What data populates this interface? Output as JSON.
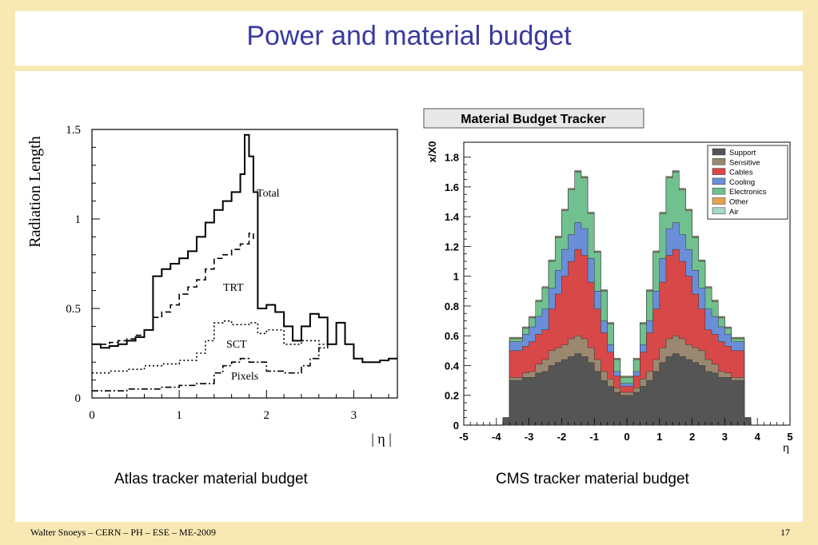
{
  "slide": {
    "title": "Power and material budget",
    "footer": "Walter Snoeys – CERN – PH – ESE – ME-2009",
    "page_number": "17",
    "caption_left": "Atlas tracker material budget",
    "caption_right": "CMS tracker material budget"
  },
  "colors": {
    "title": "#3a3aa0",
    "background": "#f8e8b4",
    "support": "#555555",
    "sensitive": "#9a8870",
    "cables": "#d84848",
    "cooling": "#6a8ed8",
    "electronics": "#70c090",
    "other": "#e8a050",
    "air": "#a8d8c8"
  },
  "chart_data": [
    {
      "type": "line",
      "xlabel": "| η |",
      "ylabel": "Radiation Length",
      "xlim": [
        0,
        3.5
      ],
      "ylim": [
        0,
        1.5
      ],
      "x_ticks": [
        "0",
        "1",
        "2",
        "3"
      ],
      "y_ticks": [
        "0",
        "0.5",
        "1",
        "1.5"
      ],
      "series": [
        {
          "name": "Total",
          "style": "solid",
          "x": [
            0,
            0.1,
            0.2,
            0.3,
            0.4,
            0.5,
            0.6,
            0.7,
            0.8,
            0.9,
            1.0,
            1.1,
            1.2,
            1.3,
            1.4,
            1.5,
            1.6,
            1.7,
            1.75,
            1.8,
            1.85,
            1.9,
            2.0,
            2.1,
            2.2,
            2.3,
            2.4,
            2.5,
            2.6,
            2.7,
            2.8,
            2.9,
            3.0,
            3.1,
            3.2,
            3.3,
            3.4,
            3.5
          ],
          "y": [
            0.3,
            0.28,
            0.29,
            0.3,
            0.32,
            0.34,
            0.38,
            0.68,
            0.72,
            0.75,
            0.78,
            0.82,
            0.9,
            0.98,
            1.05,
            1.1,
            1.15,
            1.25,
            1.47,
            1.35,
            1.15,
            0.5,
            0.52,
            0.48,
            0.4,
            0.32,
            0.4,
            0.47,
            0.45,
            0.3,
            0.42,
            0.3,
            0.22,
            0.2,
            0.2,
            0.21,
            0.22,
            0.22
          ]
        },
        {
          "name": "TRT",
          "style": "dashed",
          "x": [
            0,
            0.1,
            0.2,
            0.3,
            0.4,
            0.5,
            0.6,
            0.7,
            0.8,
            0.9,
            1.0,
            1.1,
            1.2,
            1.3,
            1.4,
            1.5,
            1.6,
            1.7,
            1.8,
            1.85
          ],
          "y": [
            0.3,
            0.3,
            0.31,
            0.32,
            0.33,
            0.35,
            0.38,
            0.45,
            0.48,
            0.52,
            0.58,
            0.62,
            0.66,
            0.72,
            0.78,
            0.8,
            0.83,
            0.86,
            0.92,
            0.88
          ]
        },
        {
          "name": "SCT",
          "style": "dotted",
          "x": [
            0,
            0.2,
            0.4,
            0.6,
            0.8,
            1.0,
            1.2,
            1.3,
            1.4,
            1.5,
            1.6,
            1.7,
            1.8,
            1.9,
            2.0,
            2.2,
            2.4,
            2.6,
            2.7
          ],
          "y": [
            0.14,
            0.15,
            0.16,
            0.18,
            0.19,
            0.21,
            0.25,
            0.32,
            0.42,
            0.43,
            0.41,
            0.41,
            0.42,
            0.36,
            0.38,
            0.3,
            0.32,
            0.3,
            0.3
          ]
        },
        {
          "name": "Pixels",
          "style": "dashdot",
          "x": [
            0,
            0.2,
            0.4,
            0.6,
            0.8,
            1.0,
            1.2,
            1.4,
            1.5,
            1.6,
            1.7,
            1.8,
            2.0,
            2.2,
            2.4,
            2.5,
            2.6,
            2.7
          ],
          "y": [
            0.04,
            0.04,
            0.05,
            0.05,
            0.06,
            0.07,
            0.08,
            0.14,
            0.18,
            0.2,
            0.22,
            0.2,
            0.15,
            0.14,
            0.18,
            0.22,
            0.28,
            0.3
          ]
        }
      ]
    },
    {
      "type": "area",
      "title": "Material Budget Tracker",
      "ylabel": "x/X0",
      "xlabel": "η",
      "xlim": [
        -5,
        5
      ],
      "ylim": [
        0,
        1.9
      ],
      "x_ticks": [
        "-5",
        "-4",
        "-3",
        "-2",
        "-1",
        "0",
        "1",
        "2",
        "3",
        "4",
        "5"
      ],
      "y_ticks": [
        "0",
        "0.2",
        "0.4",
        "0.6",
        "0.8",
        "1",
        "1.2",
        "1.4",
        "1.6",
        "1.8"
      ],
      "legend_position": "top-right",
      "x": [
        -3.7,
        -3.5,
        -3.3,
        -3.1,
        -2.9,
        -2.7,
        -2.5,
        -2.3,
        -2.1,
        -1.9,
        -1.7,
        -1.5,
        -1.3,
        -1.1,
        -0.9,
        -0.7,
        -0.5,
        -0.3,
        -0.1,
        0.1,
        0.3,
        0.5,
        0.7,
        0.9,
        1.1,
        1.3,
        1.5,
        1.7,
        1.9,
        2.1,
        2.3,
        2.5,
        2.7,
        2.9,
        3.1,
        3.3,
        3.5,
        3.7
      ],
      "series": [
        {
          "name": "Support",
          "values": [
            0.05,
            0.3,
            0.3,
            0.32,
            0.32,
            0.35,
            0.36,
            0.4,
            0.42,
            0.44,
            0.46,
            0.48,
            0.46,
            0.42,
            0.36,
            0.3,
            0.26,
            0.22,
            0.2,
            0.2,
            0.22,
            0.26,
            0.3,
            0.36,
            0.42,
            0.46,
            0.48,
            0.46,
            0.44,
            0.42,
            0.4,
            0.36,
            0.35,
            0.32,
            0.32,
            0.3,
            0.3,
            0.05
          ]
        },
        {
          "name": "Sensitive",
          "values": [
            0,
            0.02,
            0.02,
            0.03,
            0.04,
            0.06,
            0.08,
            0.1,
            0.1,
            0.1,
            0.12,
            0.12,
            0.12,
            0.1,
            0.08,
            0.06,
            0.05,
            0.03,
            0.02,
            0.02,
            0.03,
            0.05,
            0.06,
            0.08,
            0.1,
            0.12,
            0.12,
            0.12,
            0.1,
            0.1,
            0.1,
            0.08,
            0.06,
            0.04,
            0.03,
            0.02,
            0.02,
            0
          ]
        },
        {
          "name": "Cables",
          "values": [
            0,
            0.18,
            0.18,
            0.18,
            0.2,
            0.2,
            0.2,
            0.28,
            0.36,
            0.46,
            0.52,
            0.58,
            0.56,
            0.44,
            0.34,
            0.26,
            0.18,
            0.08,
            0.04,
            0.04,
            0.08,
            0.18,
            0.26,
            0.34,
            0.44,
            0.56,
            0.58,
            0.52,
            0.46,
            0.36,
            0.28,
            0.2,
            0.2,
            0.2,
            0.18,
            0.18,
            0.18,
            0
          ]
        },
        {
          "name": "Cooling",
          "values": [
            0,
            0.06,
            0.06,
            0.08,
            0.1,
            0.12,
            0.14,
            0.14,
            0.16,
            0.18,
            0.18,
            0.18,
            0.18,
            0.16,
            0.12,
            0.08,
            0.05,
            0.03,
            0.02,
            0.02,
            0.03,
            0.05,
            0.08,
            0.12,
            0.16,
            0.18,
            0.18,
            0.18,
            0.18,
            0.16,
            0.14,
            0.14,
            0.12,
            0.1,
            0.08,
            0.06,
            0.06,
            0
          ]
        },
        {
          "name": "Electronics",
          "values": [
            0,
            0.02,
            0.02,
            0.04,
            0.06,
            0.1,
            0.14,
            0.18,
            0.22,
            0.26,
            0.3,
            0.34,
            0.34,
            0.3,
            0.26,
            0.2,
            0.14,
            0.08,
            0.04,
            0.04,
            0.08,
            0.14,
            0.2,
            0.26,
            0.3,
            0.34,
            0.34,
            0.3,
            0.26,
            0.22,
            0.18,
            0.14,
            0.1,
            0.06,
            0.04,
            0.02,
            0.02,
            0
          ]
        },
        {
          "name": "Other",
          "values": [
            0,
            0.005,
            0.005,
            0.005,
            0.005,
            0.005,
            0.005,
            0.005,
            0.005,
            0.005,
            0.005,
            0.005,
            0.005,
            0.005,
            0.005,
            0.005,
            0.005,
            0.005,
            0.005,
            0.005,
            0.005,
            0.005,
            0.005,
            0.005,
            0.005,
            0.005,
            0.005,
            0.005,
            0.005,
            0.005,
            0.005,
            0.005,
            0.005,
            0.005,
            0.005,
            0.005,
            0.005,
            0
          ]
        },
        {
          "name": "Air",
          "values": [
            0,
            0.005,
            0.005,
            0.005,
            0.005,
            0.005,
            0.005,
            0.005,
            0.005,
            0.005,
            0.005,
            0.005,
            0.005,
            0.005,
            0.005,
            0.005,
            0.005,
            0.005,
            0.005,
            0.005,
            0.005,
            0.005,
            0.005,
            0.005,
            0.005,
            0.005,
            0.005,
            0.005,
            0.005,
            0.005,
            0.005,
            0.005,
            0.005,
            0.005,
            0.005,
            0.005,
            0.005,
            0
          ]
        }
      ]
    }
  ]
}
